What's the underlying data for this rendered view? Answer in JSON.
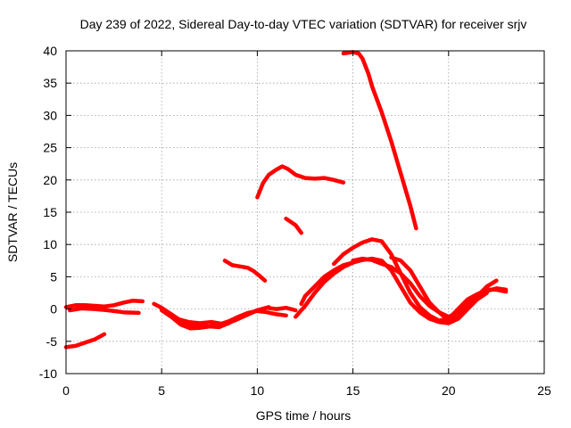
{
  "chart_data": {
    "type": "line",
    "title": "Day 239 of 2022, Sidereal Day-to-day VTEC variation (SDTVAR) for receiver srjv",
    "xlabel": "GPS time / hours",
    "ylabel": "SDTVAR / TECUs",
    "xlim": [
      0,
      25
    ],
    "ylim": [
      -10,
      40
    ],
    "xticks": [
      0,
      5,
      10,
      15,
      20,
      25
    ],
    "yticks": [
      -10,
      -5,
      0,
      5,
      10,
      15,
      20,
      25,
      30,
      35,
      40
    ],
    "grid": true,
    "series_color": "#ff0000",
    "series": [
      {
        "x": [
          0.0,
          0.5,
          1.0,
          1.5,
          2.0,
          2.5,
          3.0,
          3.5,
          4.0
        ],
        "y": [
          0.3,
          0.6,
          0.6,
          0.5,
          0.4,
          0.6,
          1.0,
          1.3,
          1.2
        ]
      },
      {
        "x": [
          0.2,
          0.8,
          1.5,
          2.2,
          3.0,
          3.8
        ],
        "y": [
          -0.2,
          0.1,
          0.0,
          -0.2,
          -0.5,
          -0.6
        ]
      },
      {
        "x": [
          0.0,
          0.5,
          1.0,
          1.5,
          2.0
        ],
        "y": [
          -5.9,
          -5.7,
          -5.2,
          -4.7,
          -3.9
        ]
      },
      {
        "x": [
          4.6,
          5.0,
          5.5,
          6.0,
          6.5,
          7.0,
          7.5,
          8.0,
          8.5,
          9.0,
          9.5,
          10.0,
          10.5,
          11.0,
          11.5,
          12.0
        ],
        "y": [
          0.8,
          0.2,
          -0.8,
          -1.8,
          -2.5,
          -2.6,
          -2.7,
          -2.8,
          -2.2,
          -1.4,
          -0.8,
          -0.2,
          0.2,
          0.0,
          0.2,
          -0.2
        ]
      },
      {
        "x": [
          5.0,
          5.5,
          6.0,
          6.5,
          7.0,
          7.5,
          8.0,
          8.5,
          9.0,
          9.5,
          10.0,
          10.5,
          11.0,
          11.5
        ],
        "y": [
          -0.2,
          -1.2,
          -2.4,
          -3.0,
          -2.9,
          -2.7,
          -2.4,
          -1.9,
          -1.2,
          -0.6,
          -0.3,
          -0.5,
          -0.8,
          -1.0
        ]
      },
      {
        "x": [
          5.2,
          5.8,
          6.4,
          7.0,
          7.6,
          8.2,
          8.8,
          9.4,
          10.0,
          10.6
        ],
        "y": [
          -0.5,
          -1.5,
          -2.0,
          -2.2,
          -2.0,
          -2.3,
          -1.8,
          -1.0,
          -0.2,
          0.3
        ]
      },
      {
        "x": [
          12.0,
          12.5,
          13.0,
          13.5,
          14.0,
          14.5,
          15.0,
          15.5,
          16.0,
          16.5,
          17.0,
          17.5,
          18.0,
          18.5,
          19.0,
          19.5,
          20.0,
          20.5,
          21.0,
          21.5,
          22.0
        ],
        "y": [
          -1.2,
          0.5,
          2.5,
          4.2,
          5.5,
          6.5,
          7.2,
          7.6,
          7.8,
          7.5,
          6.0,
          3.5,
          1.0,
          -0.5,
          -1.5,
          -2.0,
          -2.2,
          -1.5,
          0.0,
          1.5,
          2.5
        ]
      },
      {
        "x": [
          14.0,
          14.5,
          15.0,
          15.5,
          16.0,
          16.5,
          17.0,
          17.5,
          18.0,
          18.5,
          19.0,
          19.5,
          20.0,
          20.5,
          21.0,
          21.5,
          22.0,
          22.5,
          23.0
        ],
        "y": [
          7.0,
          8.5,
          9.5,
          10.3,
          10.8,
          10.5,
          8.5,
          5.5,
          2.5,
          0.3,
          -1.0,
          -1.8,
          -1.5,
          0.0,
          1.5,
          2.3,
          3.0,
          3.0,
          2.7
        ]
      },
      {
        "x": [
          15.0,
          15.5,
          16.0,
          16.5,
          17.0,
          17.5,
          18.0,
          18.5,
          19.0,
          19.5,
          20.0,
          20.5,
          21.0,
          21.5,
          22.0,
          22.5
        ],
        "y": [
          7.5,
          7.8,
          7.6,
          7.0,
          6.5,
          5.5,
          4.0,
          2.0,
          0.5,
          -0.5,
          -1.8,
          -1.2,
          0.5,
          2.0,
          3.5,
          4.4
        ]
      },
      {
        "x": [
          17.0,
          17.5,
          18.0,
          18.5,
          19.0,
          19.5,
          20.0,
          20.5,
          21.0,
          21.5,
          22.0,
          22.5,
          23.0
        ],
        "y": [
          8.0,
          7.5,
          6.0,
          3.5,
          1.0,
          -0.5,
          -1.2,
          -0.5,
          0.8,
          2.0,
          2.8,
          3.2,
          3.0
        ]
      },
      {
        "x": [
          12.3,
          12.5,
          13.0,
          13.5,
          14.0,
          14.5,
          15.0
        ],
        "y": [
          0.8,
          2.0,
          3.5,
          5.0,
          6.0,
          6.8,
          7.2
        ]
      },
      {
        "x": [
          10.0,
          10.3,
          10.6,
          11.0,
          11.3,
          11.6,
          12.0,
          12.5,
          13.0,
          13.5,
          14.0,
          14.5
        ],
        "y": [
          17.3,
          19.5,
          20.8,
          21.6,
          22.1,
          21.7,
          20.8,
          20.3,
          20.2,
          20.3,
          20.0,
          19.6
        ]
      },
      {
        "x": [
          11.5,
          12.0,
          12.3
        ],
        "y": [
          14.0,
          13.0,
          11.8
        ]
      },
      {
        "x": [
          8.3,
          8.7,
          9.1,
          9.5,
          9.8,
          10.1,
          10.4
        ],
        "y": [
          7.5,
          6.8,
          6.6,
          6.4,
          5.9,
          5.2,
          4.4
        ]
      },
      {
        "x": [
          14.5,
          15.0,
          15.3,
          15.5,
          15.8,
          16.0,
          16.5,
          17.0,
          17.5,
          18.0,
          18.3
        ],
        "y": [
          39.6,
          39.8,
          39.6,
          38.8,
          36.5,
          34.5,
          30.5,
          26.0,
          21.0,
          16.0,
          12.5
        ]
      }
    ]
  }
}
